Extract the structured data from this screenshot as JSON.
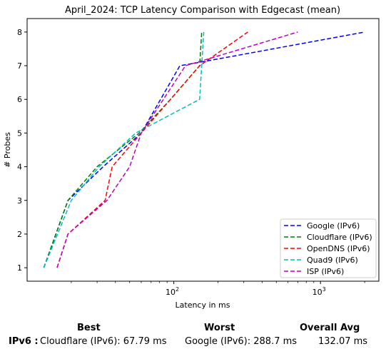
{
  "chart_data": {
    "type": "line",
    "title": "April_2024: TCP Latency Comparison with Edgecast (mean)",
    "xlabel": "Latency in ms",
    "ylabel": "# Probes",
    "x_scale": "log",
    "xlim": [
      10,
      2500
    ],
    "ylim": [
      0.6,
      8.4
    ],
    "x_ticks": [
      {
        "value": 100,
        "base": "10",
        "exp": "2"
      },
      {
        "value": 1000,
        "base": "10",
        "exp": "3"
      }
    ],
    "y_ticks": [
      1,
      2,
      3,
      4,
      5,
      6,
      7,
      8
    ],
    "legend_position": "lower-right",
    "grid": false,
    "series": [
      {
        "name": "Google (IPv6)",
        "color": "#0000ff",
        "x": [
          13,
          19,
          33,
          60,
          110,
          150,
          2000
        ],
        "y": [
          1,
          3,
          4,
          5,
          7,
          7.1,
          8
        ]
      },
      {
        "name": "Cloudflare (IPv6)",
        "color": "#008000",
        "x": [
          13,
          19,
          30,
          58,
          95,
          150,
          155
        ],
        "y": [
          1,
          3,
          4,
          5,
          6,
          7,
          8
        ]
      },
      {
        "name": "OpenDNS (IPv6)",
        "color": "#ff0000",
        "x": [
          16,
          19,
          34,
          38,
          60,
          150,
          320
        ],
        "y": [
          1,
          2,
          3,
          4,
          5,
          7,
          8
        ]
      },
      {
        "name": "Quad9 (IPv6)",
        "color": "#00bfbf",
        "x": [
          13,
          20,
          31,
          55,
          150,
          160
        ],
        "y": [
          1,
          3,
          4,
          5,
          6,
          8
        ]
      },
      {
        "name": "ISP (IPv6)",
        "color": "#bf00bf",
        "x": [
          16,
          19,
          35,
          50,
          60,
          120,
          700
        ],
        "y": [
          1,
          2,
          3,
          4,
          5,
          7,
          8
        ]
      }
    ]
  },
  "summary": {
    "best_header": "Best",
    "worst_header": "Worst",
    "avg_header": "Overall Avg",
    "row_label": "IPv6 :",
    "best_value": "Cloudflare (IPv6): 67.79 ms",
    "worst_value": "Google (IPv6): 288.7 ms",
    "avg_value": "132.07 ms"
  }
}
